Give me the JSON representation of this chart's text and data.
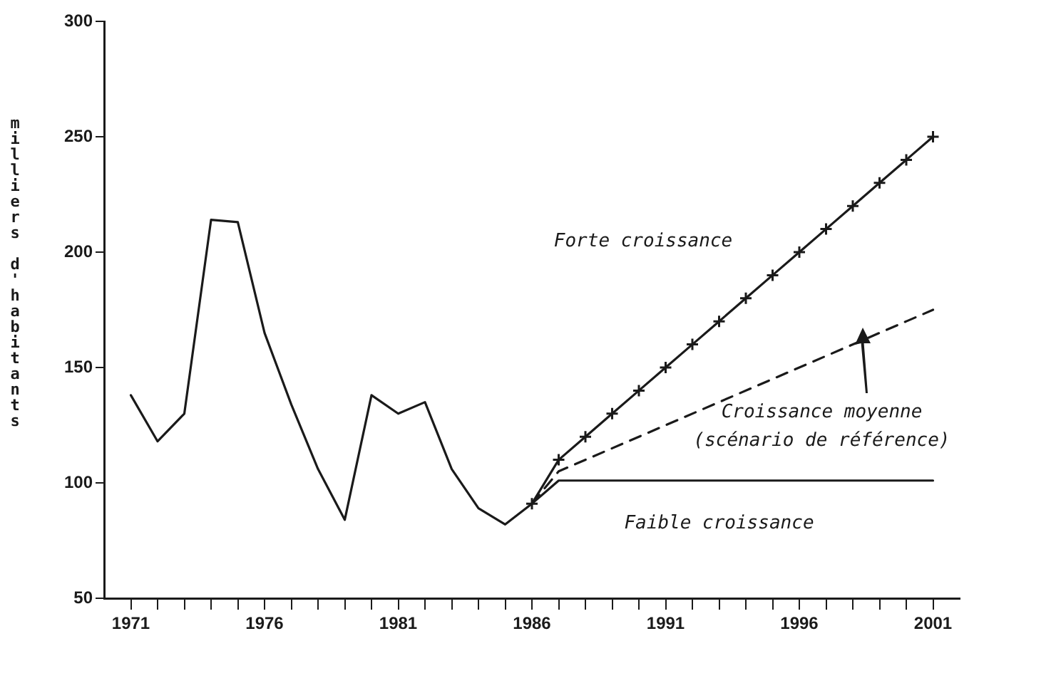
{
  "chart_data": {
    "type": "line",
    "ylabel": "milliers d'habitants",
    "xlim": [
      1970,
      2002
    ],
    "xticks": [
      {
        "value": 1971,
        "label": "1971"
      },
      {
        "value": 1972,
        "label": null
      },
      {
        "value": 1973,
        "label": null
      },
      {
        "value": 1974,
        "label": null
      },
      {
        "value": 1975,
        "label": null
      },
      {
        "value": 1976,
        "label": "1976"
      },
      {
        "value": 1977,
        "label": null
      },
      {
        "value": 1978,
        "label": null
      },
      {
        "value": 1979,
        "label": null
      },
      {
        "value": 1980,
        "label": null
      },
      {
        "value": 1981,
        "label": "1981"
      },
      {
        "value": 1982,
        "label": null
      },
      {
        "value": 1983,
        "label": null
      },
      {
        "value": 1984,
        "label": null
      },
      {
        "value": 1985,
        "label": null
      },
      {
        "value": 1986,
        "label": "1986"
      },
      {
        "value": 1987,
        "label": null
      },
      {
        "value": 1988,
        "label": null
      },
      {
        "value": 1989,
        "label": null
      },
      {
        "value": 1990,
        "label": null
      },
      {
        "value": 1991,
        "label": "1991"
      },
      {
        "value": 1992,
        "label": null
      },
      {
        "value": 1993,
        "label": null
      },
      {
        "value": 1994,
        "label": null
      },
      {
        "value": 1995,
        "label": null
      },
      {
        "value": 1996,
        "label": "1996"
      },
      {
        "value": 1997,
        "label": null
      },
      {
        "value": 1998,
        "label": null
      },
      {
        "value": 1999,
        "label": null
      },
      {
        "value": 2000,
        "label": null
      },
      {
        "value": 2001,
        "label": "2001"
      }
    ],
    "ylim": [
      50,
      300
    ],
    "yticks": [
      50,
      100,
      150,
      200,
      250,
      300
    ],
    "grid": false,
    "legend": false,
    "series": [
      {
        "color": "#1a1a1a",
        "x": [
          1971,
          1972,
          1973,
          1974,
          1975,
          1976,
          1977,
          1978,
          1979,
          1980,
          1981,
          1982,
          1983,
          1984,
          1985,
          1986
        ],
        "values": [
          138,
          118,
          130,
          214,
          213,
          165,
          134,
          106,
          84,
          138,
          130,
          135,
          106,
          89,
          82,
          91
        ],
        "marker": "none",
        "line_style": "solid"
      },
      {
        "name": "Forte croissance",
        "color": "#1a1a1a",
        "x": [
          1986,
          1987,
          1988,
          1989,
          1990,
          1991,
          1992,
          1993,
          1994,
          1995,
          1996,
          1997,
          1998,
          1999,
          2000,
          2001
        ],
        "values": [
          91,
          110,
          120,
          130,
          140,
          150,
          160,
          170,
          180,
          190,
          200,
          210,
          220,
          230,
          240,
          250
        ],
        "marker": "cross",
        "line_style": "solid"
      },
      {
        "name": "Croissance moyenne (scénario de référence)",
        "color": "#1a1a1a",
        "x": [
          1986,
          1987,
          2001
        ],
        "values": [
          91,
          105,
          175
        ],
        "marker": "none",
        "line_style": "dashed"
      },
      {
        "name": "Faible croissance",
        "color": "#1a1a1a",
        "x": [
          1986,
          1987,
          2001
        ],
        "values": [
          91,
          101,
          101
        ],
        "marker": "none",
        "line_style": "solid"
      }
    ]
  }
}
